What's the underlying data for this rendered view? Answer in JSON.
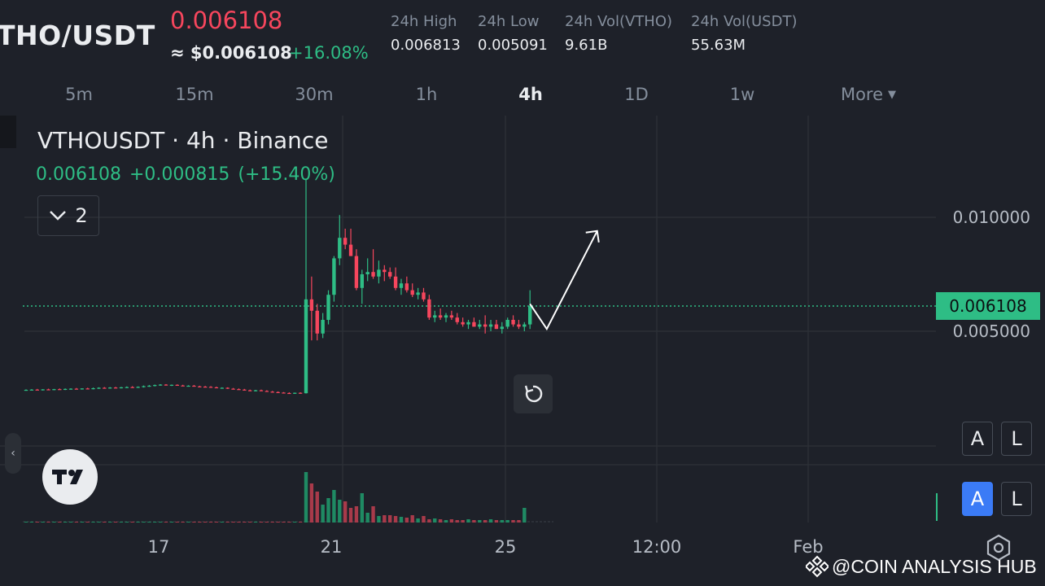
{
  "header": {
    "pair": "THO/USDT",
    "price": "0.006108",
    "approx_usd": "≈ $0.006108",
    "change_pct": "+16.08%",
    "stats": [
      {
        "label": "24h High",
        "value": "0.006813"
      },
      {
        "label": "24h Low",
        "value": "0.005091"
      },
      {
        "label": "24h Vol(VTHO)",
        "value": "9.61B"
      },
      {
        "label": "24h Vol(USDT)",
        "value": "55.63M"
      }
    ]
  },
  "tabs": [
    {
      "label": "5m"
    },
    {
      "label": "15m"
    },
    {
      "label": "30m"
    },
    {
      "label": "1h"
    },
    {
      "label": "4h",
      "active": true
    },
    {
      "label": "1D"
    },
    {
      "label": "1w"
    },
    {
      "label": "More"
    }
  ],
  "legend": {
    "title": "VTHOUSDT · 4h · Binance",
    "last": "0.006108",
    "abs_change": "+0.000815",
    "pct_change": "(+15.40%)",
    "indicator_count": "2"
  },
  "price_axis": {
    "labels": [
      "0.010000",
      "0.005000"
    ],
    "last_price": "0.006108"
  },
  "time_axis": [
    "17",
    "21",
    "25",
    "12:00",
    "Feb"
  ],
  "scale_buttons": {
    "auto": "A",
    "log": "L"
  },
  "watermark": "@COIN ANALYSIS HUB",
  "colors": {
    "up": "#2ebd85",
    "down": "#f6465d",
    "accent": "#3b7bf6",
    "background": "#1e2129"
  },
  "icons": [
    "chevron-down-icon",
    "reset-icon",
    "tradingview-logo",
    "settings-icon",
    "binance-logo",
    "chevron-left-icon"
  ],
  "chart_data": {
    "type": "candlestick",
    "interval": "4h",
    "y_axis_ticks": [
      0.005,
      0.01
    ],
    "last_price": 0.006108,
    "candles": [
      [
        0.00242,
        0.00245,
        0.00239,
        0.00243
      ],
      [
        0.00243,
        0.00246,
        0.0024,
        0.00244
      ],
      [
        0.00244,
        0.00247,
        0.00241,
        0.00243
      ],
      [
        0.00243,
        0.00246,
        0.0024,
        0.00245
      ],
      [
        0.00245,
        0.00248,
        0.00242,
        0.00244
      ],
      [
        0.00244,
        0.00247,
        0.00241,
        0.00246
      ],
      [
        0.00246,
        0.00249,
        0.00243,
        0.00245
      ],
      [
        0.00245,
        0.00249,
        0.00242,
        0.00247
      ],
      [
        0.00247,
        0.0025,
        0.00244,
        0.00248
      ],
      [
        0.00248,
        0.00251,
        0.00245,
        0.00247
      ],
      [
        0.00247,
        0.0025,
        0.00244,
        0.00249
      ],
      [
        0.00249,
        0.00252,
        0.00246,
        0.00248
      ],
      [
        0.00248,
        0.00253,
        0.00245,
        0.0025
      ],
      [
        0.0025,
        0.00254,
        0.00247,
        0.00252
      ],
      [
        0.00252,
        0.00255,
        0.00249,
        0.00251
      ],
      [
        0.00251,
        0.00255,
        0.00248,
        0.00253
      ],
      [
        0.00253,
        0.00256,
        0.0025,
        0.00252
      ],
      [
        0.00252,
        0.00256,
        0.00249,
        0.00254
      ],
      [
        0.00254,
        0.00258,
        0.00251,
        0.00255
      ],
      [
        0.00255,
        0.00259,
        0.00252,
        0.00254
      ],
      [
        0.00254,
        0.00258,
        0.00251,
        0.00256
      ],
      [
        0.00256,
        0.00262,
        0.00253,
        0.00259
      ],
      [
        0.00259,
        0.00264,
        0.00256,
        0.00261
      ],
      [
        0.00261,
        0.00266,
        0.00258,
        0.00264
      ],
      [
        0.00264,
        0.00268,
        0.00261,
        0.00266
      ],
      [
        0.00266,
        0.00268,
        0.00262,
        0.00263
      ],
      [
        0.00263,
        0.00266,
        0.0026,
        0.00265
      ],
      [
        0.00265,
        0.00267,
        0.00261,
        0.00262
      ],
      [
        0.00262,
        0.00265,
        0.00259,
        0.0026
      ],
      [
        0.0026,
        0.00263,
        0.00257,
        0.00261
      ],
      [
        0.00261,
        0.00264,
        0.00257,
        0.00258
      ],
      [
        0.00258,
        0.00261,
        0.00255,
        0.00257
      ],
      [
        0.00257,
        0.0026,
        0.00254,
        0.00256
      ],
      [
        0.00256,
        0.00259,
        0.00253,
        0.00254
      ],
      [
        0.00254,
        0.00257,
        0.0025,
        0.00251
      ],
      [
        0.00251,
        0.00254,
        0.00248,
        0.00252
      ],
      [
        0.00252,
        0.00254,
        0.00247,
        0.00248
      ],
      [
        0.00248,
        0.00251,
        0.00245,
        0.00246
      ],
      [
        0.00246,
        0.00249,
        0.00243,
        0.00244
      ],
      [
        0.00244,
        0.00247,
        0.0024,
        0.00241
      ],
      [
        0.00241,
        0.00244,
        0.00237,
        0.00239
      ],
      [
        0.00239,
        0.00243,
        0.00236,
        0.00241
      ],
      [
        0.00241,
        0.00244,
        0.00237,
        0.00238
      ],
      [
        0.00238,
        0.00241,
        0.00234,
        0.00235
      ],
      [
        0.00235,
        0.00238,
        0.00231,
        0.00233
      ],
      [
        0.00233,
        0.00236,
        0.00229,
        0.00231
      ],
      [
        0.00231,
        0.00233,
        0.00227,
        0.00229
      ],
      [
        0.00229,
        0.00232,
        0.00226,
        0.00228
      ],
      [
        0.00228,
        0.00231,
        0.00225,
        0.0023
      ],
      [
        0.0023,
        0.00232,
        0.00226,
        0.00227
      ],
      [
        0.00228,
        0.0117,
        0.00227,
        0.0064
      ],
      [
        0.0064,
        0.0074,
        0.0046,
        0.0059
      ],
      [
        0.0059,
        0.0062,
        0.0046,
        0.0049
      ],
      [
        0.0049,
        0.0058,
        0.0047,
        0.0055
      ],
      [
        0.0055,
        0.0068,
        0.0053,
        0.0066
      ],
      [
        0.0066,
        0.0083,
        0.0063,
        0.0082
      ],
      [
        0.0082,
        0.0101,
        0.0079,
        0.0091
      ],
      [
        0.0091,
        0.0095,
        0.0086,
        0.0088
      ],
      [
        0.0088,
        0.0095,
        0.0083,
        0.0083
      ],
      [
        0.0083,
        0.0086,
        0.0068,
        0.0069
      ],
      [
        0.0069,
        0.0077,
        0.0062,
        0.0075
      ],
      [
        0.0075,
        0.0082,
        0.0072,
        0.0076
      ],
      [
        0.0076,
        0.0086,
        0.0073,
        0.0074
      ],
      [
        0.0074,
        0.0081,
        0.0071,
        0.0077
      ],
      [
        0.0077,
        0.0079,
        0.0072,
        0.0076
      ],
      [
        0.0076,
        0.0078,
        0.0073,
        0.0074
      ],
      [
        0.0074,
        0.0078,
        0.0068,
        0.0069
      ],
      [
        0.0069,
        0.0073,
        0.0066,
        0.0071
      ],
      [
        0.0071,
        0.0074,
        0.0067,
        0.0068
      ],
      [
        0.0068,
        0.0071,
        0.0065,
        0.0066
      ],
      [
        0.0066,
        0.0069,
        0.0064,
        0.0067
      ],
      [
        0.0067,
        0.0069,
        0.0063,
        0.0064
      ],
      [
        0.0064,
        0.0066,
        0.0055,
        0.0056
      ],
      [
        0.0056,
        0.0059,
        0.0054,
        0.0057
      ],
      [
        0.0057,
        0.006,
        0.0055,
        0.0056
      ],
      [
        0.0056,
        0.0058,
        0.0054,
        0.0057
      ],
      [
        0.0057,
        0.0059,
        0.0055,
        0.0056
      ],
      [
        0.0056,
        0.0058,
        0.0053,
        0.0054
      ],
      [
        0.0054,
        0.0056,
        0.0052,
        0.0053
      ],
      [
        0.0053,
        0.0055,
        0.0051,
        0.0054
      ],
      [
        0.0054,
        0.0056,
        0.0052,
        0.0052
      ],
      [
        0.0052,
        0.0055,
        0.0051,
        0.0053
      ],
      [
        0.0053,
        0.0057,
        0.0049,
        0.0052
      ],
      [
        0.0052,
        0.0055,
        0.005,
        0.0053
      ],
      [
        0.0053,
        0.0055,
        0.0051,
        0.0051
      ],
      [
        0.0051,
        0.0054,
        0.0049,
        0.0052
      ],
      [
        0.0052,
        0.0056,
        0.0051,
        0.0055
      ],
      [
        0.0055,
        0.0057,
        0.0052,
        0.0053
      ],
      [
        0.0053,
        0.0055,
        0.0051,
        0.0052
      ],
      [
        0.0052,
        0.0054,
        0.005,
        0.0053
      ],
      [
        0.0053,
        0.0068,
        0.0051,
        0.0061
      ]
    ],
    "volume": [
      1,
      1,
      1,
      1,
      1,
      1,
      1,
      1,
      1,
      1,
      1,
      1,
      1,
      1,
      1,
      1,
      1,
      1,
      1,
      1,
      1,
      1,
      1,
      1,
      1,
      1,
      1,
      1,
      1,
      1,
      1,
      1,
      1,
      1,
      1,
      1,
      1,
      1,
      1,
      1,
      1,
      1,
      1,
      1,
      1,
      1,
      1,
      1,
      1,
      1,
      62,
      48,
      38,
      22,
      30,
      40,
      28,
      26,
      18,
      20,
      36,
      12,
      20,
      8,
      9,
      9,
      8,
      7,
      6,
      9,
      5,
      8,
      4,
      5,
      4,
      3,
      4,
      3,
      3,
      4,
      3,
      3,
      3,
      4,
      3,
      3,
      3,
      3,
      3,
      18
    ],
    "projection": [
      {
        "dx": 0,
        "price": 0.0062
      },
      {
        "dx": 3,
        "price": 0.0051
      },
      {
        "dx": 12,
        "price": 0.0094
      }
    ]
  }
}
